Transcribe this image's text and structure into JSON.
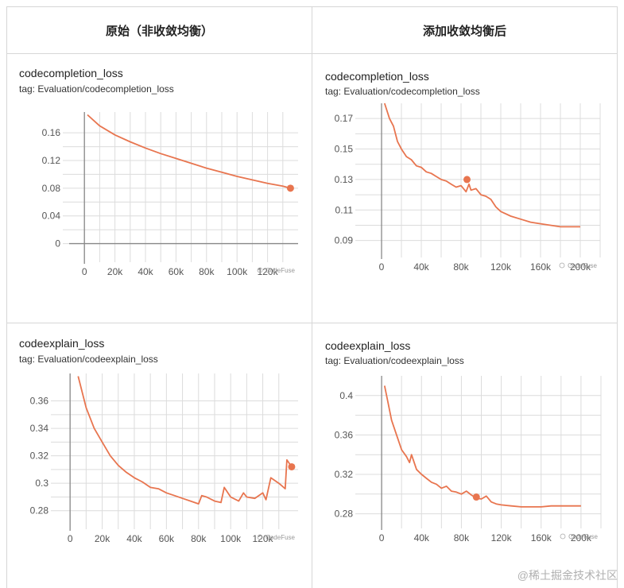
{
  "headers": [
    "原始（非收敛均衡）",
    "添加收敛均衡后"
  ],
  "accent_color": "#e8754f",
  "watermark": "@稀土掘金技术社区",
  "logo_text": "CodeFuse",
  "charts": [
    {
      "title": "codecompletion_loss",
      "tag": "tag: Evaluation/codecompletion_loss",
      "chart_data": {
        "type": "line",
        "x": [
          2,
          10,
          20,
          30,
          40,
          50,
          60,
          70,
          80,
          90,
          100,
          110,
          120,
          130,
          135
        ],
        "values": [
          0.186,
          0.17,
          0.157,
          0.147,
          0.138,
          0.13,
          0.123,
          0.116,
          0.109,
          0.103,
          0.097,
          0.092,
          0.087,
          0.083,
          0.08
        ],
        "xlim": [
          -10,
          140
        ],
        "ylim": [
          -0.02,
          0.19
        ],
        "xticks": [
          0,
          20,
          40,
          60,
          80,
          100,
          120
        ],
        "xtick_labels": [
          "0",
          "20k",
          "40k",
          "60k",
          "80k",
          "100k",
          "120k"
        ],
        "yticks": [
          0,
          0.04,
          0.08,
          0.12,
          0.16
        ],
        "ytick_labels": [
          "0",
          "0.04",
          "0.08",
          "0.12",
          "0.16"
        ],
        "marker": [
          135,
          0.08
        ]
      }
    },
    {
      "title": "codecompletion_loss",
      "tag": "tag: Evaluation/codecompletion_loss",
      "chart_data": {
        "type": "line",
        "x": [
          3,
          8,
          12,
          14,
          16,
          20,
          25,
          30,
          35,
          40,
          45,
          50,
          55,
          60,
          65,
          70,
          75,
          80,
          85,
          88,
          90,
          95,
          100,
          105,
          110,
          115,
          120,
          130,
          140,
          150,
          160,
          170,
          180,
          190,
          200
        ],
        "values": [
          0.18,
          0.17,
          0.165,
          0.16,
          0.155,
          0.15,
          0.145,
          0.143,
          0.139,
          0.138,
          0.135,
          0.134,
          0.132,
          0.13,
          0.129,
          0.127,
          0.125,
          0.126,
          0.122,
          0.127,
          0.123,
          0.124,
          0.12,
          0.119,
          0.117,
          0.112,
          0.109,
          0.106,
          0.104,
          0.102,
          0.101,
          0.1,
          0.099,
          0.099,
          0.099
        ],
        "xlim": [
          -20,
          220
        ],
        "ylim": [
          0.082,
          0.18
        ],
        "xticks": [
          0,
          40,
          80,
          120,
          160,
          200
        ],
        "xtick_labels": [
          "0",
          "40k",
          "80k",
          "120k",
          "160k",
          "200k"
        ],
        "yticks": [
          0.09,
          0.11,
          0.13,
          0.15,
          0.17
        ],
        "ytick_labels": [
          "0.09",
          "0.11",
          "0.13",
          "0.15",
          "0.17"
        ],
        "marker": [
          86,
          0.13
        ]
      }
    },
    {
      "title": "codeexplain_loss",
      "tag": "tag: Evaluation/codeexplain_loss",
      "chart_data": {
        "type": "line",
        "x": [
          5,
          10,
          15,
          20,
          25,
          30,
          35,
          40,
          45,
          50,
          55,
          60,
          65,
          70,
          75,
          80,
          82,
          85,
          90,
          94,
          96,
          100,
          105,
          108,
          110,
          115,
          120,
          122,
          125,
          130,
          132,
          134,
          135,
          138
        ],
        "values": [
          0.378,
          0.355,
          0.34,
          0.33,
          0.32,
          0.313,
          0.308,
          0.304,
          0.301,
          0.297,
          0.296,
          0.293,
          0.291,
          0.289,
          0.287,
          0.285,
          0.291,
          0.29,
          0.287,
          0.286,
          0.297,
          0.29,
          0.287,
          0.293,
          0.29,
          0.289,
          0.293,
          0.288,
          0.304,
          0.3,
          0.298,
          0.296,
          0.317,
          0.312
        ],
        "xlim": [
          -8,
          142
        ],
        "ylim": [
          0.27,
          0.38
        ],
        "xticks": [
          0,
          20,
          40,
          60,
          80,
          100,
          120
        ],
        "xtick_labels": [
          "0",
          "20k",
          "40k",
          "60k",
          "80k",
          "100k",
          "120k"
        ],
        "yticks": [
          0.28,
          0.3,
          0.32,
          0.34,
          0.36
        ],
        "ytick_labels": [
          "0.28",
          "0.3",
          "0.32",
          "0.34",
          "0.36"
        ],
        "marker": [
          138,
          0.312
        ]
      }
    },
    {
      "title": "codeexplain_loss",
      "tag": "tag: Evaluation/codeexplain_loss",
      "chart_data": {
        "type": "line",
        "x": [
          3,
          6,
          10,
          15,
          20,
          25,
          28,
          30,
          35,
          40,
          45,
          50,
          55,
          60,
          65,
          70,
          75,
          80,
          85,
          90,
          95,
          100,
          105,
          110,
          115,
          120,
          130,
          140,
          150,
          160,
          170,
          180,
          190,
          200
        ],
        "values": [
          0.41,
          0.395,
          0.375,
          0.36,
          0.345,
          0.338,
          0.332,
          0.34,
          0.325,
          0.32,
          0.316,
          0.312,
          0.31,
          0.306,
          0.308,
          0.303,
          0.302,
          0.3,
          0.303,
          0.299,
          0.296,
          0.295,
          0.298,
          0.292,
          0.29,
          0.289,
          0.288,
          0.287,
          0.287,
          0.287,
          0.288,
          0.288,
          0.288,
          0.288
        ],
        "xlim": [
          -20,
          220
        ],
        "ylim": [
          0.27,
          0.42
        ],
        "xticks": [
          0,
          40,
          80,
          120,
          160,
          200
        ],
        "xtick_labels": [
          "0",
          "40k",
          "80k",
          "120k",
          "160k",
          "200k"
        ],
        "yticks": [
          0.28,
          0.32,
          0.36,
          0.4
        ],
        "ytick_labels": [
          "0.28",
          "0.32",
          "0.36",
          "0.4"
        ],
        "marker": [
          95,
          0.297
        ]
      }
    }
  ]
}
